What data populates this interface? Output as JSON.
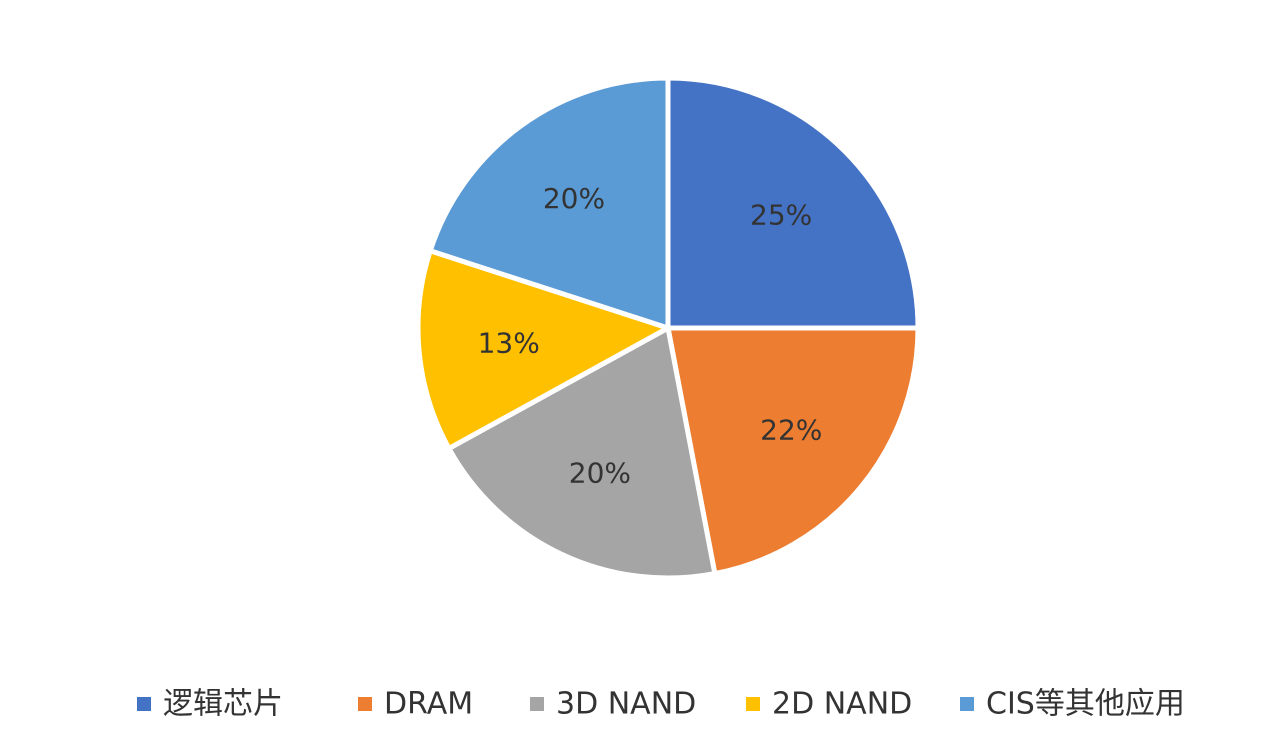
{
  "chart_data": {
    "type": "pie",
    "title": "",
    "categories": [
      "逻辑芯片",
      "DRAM",
      "3D NAND",
      "2D NAND",
      "CIS等其他应用"
    ],
    "values": [
      25,
      22,
      20,
      13,
      20
    ],
    "labels": [
      "25%",
      "22%",
      "20%",
      "13%",
      "20%"
    ],
    "colors": [
      "#4472c4",
      "#ed7d31",
      "#a5a5a5",
      "#ffc000",
      "#5b9bd5"
    ],
    "label_colors": [
      "#333333",
      "#333333",
      "#333333",
      "#8b1a1a",
      "#333333"
    ],
    "start_angle_deg": 0,
    "direction": "clockwise",
    "legend_position": "bottom"
  }
}
